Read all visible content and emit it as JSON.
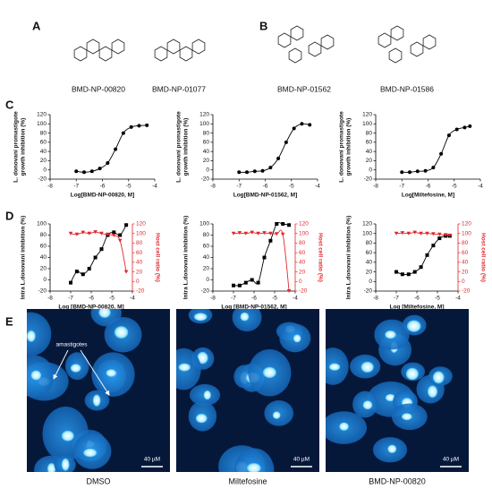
{
  "panel_labels": [
    "A",
    "B",
    "C",
    "D",
    "E"
  ],
  "compounds": [
    "BMD-NP-00820",
    "BMD-NP-01077",
    "BMD-NP-01562",
    "BMD-NP-01586"
  ],
  "chart_data": [
    {
      "type": "line",
      "ylabel": [
        "L. donovani promastigote",
        "growth inhibition (%)"
      ],
      "xlabel": "Log[BMD-NP-00820, M]",
      "xlim": [
        -8,
        -4
      ],
      "xticks": [
        -8,
        -7,
        -6,
        -5,
        -4
      ],
      "ylim": [
        -20,
        120
      ],
      "yticks": [
        -20,
        0,
        20,
        40,
        60,
        80,
        100,
        120
      ],
      "x": [
        -7,
        -6.7,
        -6.4,
        -6.1,
        -5.8,
        -5.5,
        -5.2,
        -4.9,
        -4.6,
        -4.3
      ],
      "series": [
        {
          "color": "#000000",
          "marker": "circle",
          "values": [
            -3,
            -5,
            -3,
            3,
            15,
            45,
            80,
            93,
            96,
            97
          ]
        }
      ]
    },
    {
      "type": "line",
      "ylabel": [
        "L. donovani promastigote",
        "growth inhibition (%)"
      ],
      "xlabel": "Log[BMD-NP-01562, M]",
      "xlim": [
        -8,
        -4
      ],
      "xticks": [
        -8,
        -7,
        -6,
        -5,
        -4
      ],
      "ylim": [
        -20,
        120
      ],
      "yticks": [
        -20,
        0,
        20,
        40,
        60,
        80,
        100,
        120
      ],
      "x": [
        -7,
        -6.7,
        -6.4,
        -6.1,
        -5.8,
        -5.5,
        -5.2,
        -4.9,
        -4.6,
        -4.3
      ],
      "series": [
        {
          "color": "#000000",
          "marker": "circle",
          "values": [
            -5,
            -5,
            -3,
            -2,
            5,
            25,
            60,
            90,
            100,
            98
          ]
        }
      ]
    },
    {
      "type": "line",
      "ylabel": [
        "L. donovani promastigote",
        "growth inhibition (%)"
      ],
      "xlabel": "Log[Miltefosine, M]",
      "xlim": [
        -8,
        -4
      ],
      "xticks": [
        -8,
        -7,
        -6,
        -5,
        -4
      ],
      "ylim": [
        -20,
        120
      ],
      "yticks": [
        -20,
        0,
        20,
        40,
        60,
        80,
        100,
        120
      ],
      "x": [
        -7,
        -6.7,
        -6.4,
        -6.1,
        -5.8,
        -5.5,
        -5.2,
        -4.9,
        -4.6,
        -4.4
      ],
      "series": [
        {
          "color": "#000000",
          "marker": "circle",
          "values": [
            -5,
            -5,
            -3,
            -2,
            5,
            35,
            75,
            88,
            92,
            95
          ]
        }
      ]
    },
    {
      "type": "line",
      "ylabel": [
        "Intra L.donovani inhibition (%)"
      ],
      "y2label": "Host cell ratio (%)",
      "xlabel": "Log [BMD-NP-00820, M]",
      "xlim": [
        -8,
        -4
      ],
      "xticks": [
        -8,
        -7,
        -6,
        -5,
        -4
      ],
      "ylim": [
        -20,
        100
      ],
      "yticks": [
        -20,
        0,
        20,
        40,
        60,
        80,
        100
      ],
      "y2lim": [
        -20,
        120
      ],
      "y2ticks": [
        -20,
        0,
        20,
        40,
        60,
        80,
        100,
        120
      ],
      "x": [
        -7,
        -6.7,
        -6.4,
        -6.1,
        -5.8,
        -5.5,
        -5.2,
        -4.9,
        -4.6,
        -4.3
      ],
      "series": [
        {
          "color": "#000000",
          "marker": "square",
          "values": [
            -5,
            15,
            10,
            20,
            40,
            55,
            80,
            85,
            80,
            98
          ]
        },
        {
          "color": "#e3262b",
          "marker": "triangle",
          "axis": "y2",
          "values": [
            100,
            98,
            102,
            100,
            103,
            100,
            98,
            96,
            85,
            20
          ]
        }
      ]
    },
    {
      "type": "line",
      "ylabel": [
        "Intra L.donovani inhibition (%)"
      ],
      "y2label": "Host cell ratio (%)",
      "xlabel": "Log [BMD-NP-01562, M]",
      "xlim": [
        -8,
        -4
      ],
      "xticks": [
        -8,
        -7,
        -6,
        -5,
        -4
      ],
      "ylim": [
        -20,
        100
      ],
      "yticks": [
        -20,
        0,
        20,
        40,
        60,
        80,
        100
      ],
      "y2lim": [
        -20,
        120
      ],
      "y2ticks": [
        -20,
        0,
        20,
        40,
        60,
        80,
        100,
        120
      ],
      "x": [
        -7,
        -6.7,
        -6.4,
        -6.1,
        -5.8,
        -5.5,
        -5.2,
        -4.9,
        -4.6,
        -4.3
      ],
      "series": [
        {
          "color": "#000000",
          "marker": "square",
          "values": [
            -10,
            -10,
            -5,
            0,
            -5,
            40,
            70,
            100,
            100,
            98
          ]
        },
        {
          "color": "#e3262b",
          "marker": "triangle",
          "axis": "y2",
          "values": [
            100,
            101,
            100,
            102,
            100,
            101,
            100,
            99,
            98,
            -20
          ]
        }
      ]
    },
    {
      "type": "line",
      "ylabel": [
        "Intra L.donovani inhibition (%)"
      ],
      "y2label": "Host cell ratio (%)",
      "xlabel": "Log [Miltefosine, M]",
      "xlim": [
        -8,
        -4
      ],
      "xticks": [
        -8,
        -7,
        -6,
        -5,
        -4
      ],
      "ylim": [
        -20,
        120
      ],
      "yticks": [
        -20,
        0,
        20,
        40,
        60,
        80,
        100,
        120
      ],
      "y2lim": [
        -20,
        120
      ],
      "y2ticks": [
        -20,
        0,
        20,
        40,
        60,
        80,
        100,
        120
      ],
      "x": [
        -7,
        -6.7,
        -6.4,
        -6.1,
        -5.8,
        -5.5,
        -5.2,
        -4.9,
        -4.6,
        -4.4
      ],
      "series": [
        {
          "color": "#000000",
          "marker": "square",
          "values": [
            20,
            15,
            15,
            20,
            30,
            55,
            75,
            90,
            95,
            95
          ]
        },
        {
          "color": "#e3262b",
          "marker": "triangle",
          "axis": "y2",
          "values": [
            100,
            101,
            100,
            102,
            100,
            100,
            99,
            98,
            97,
            96
          ]
        }
      ]
    }
  ],
  "images": [
    {
      "caption": "DMSO",
      "scale_bar": "40 µM",
      "annotation": "amastigotes"
    },
    {
      "caption": "Miltefosine",
      "scale_bar": "40 µM"
    },
    {
      "caption": "BMD-NP-00820",
      "scale_bar": "40 µM"
    }
  ]
}
